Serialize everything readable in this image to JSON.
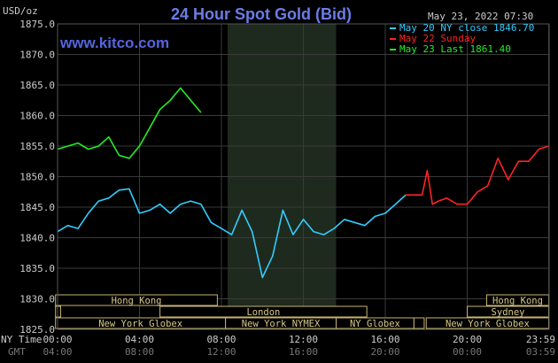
{
  "chart_data": {
    "type": "line",
    "title": "24 Hour Spot Gold (Bid)",
    "watermark": "www.kitco.com",
    "unit_label": "USD/oz",
    "timestamp": "May 23, 2022 07:30",
    "ylim": [
      1825,
      1875
    ],
    "y_ticks": [
      "1875.0",
      "1870.0",
      "1865.0",
      "1860.0",
      "1855.0",
      "1850.0",
      "1845.0",
      "1840.0",
      "1835.0",
      "1830.0",
      "1825.0"
    ],
    "x_tick_hours": [
      0,
      4,
      8,
      12,
      16,
      20,
      23.98
    ],
    "x_labels_ny": [
      "00:00",
      "04:00",
      "08:00",
      "12:00",
      "16:00",
      "20:00",
      "23:59"
    ],
    "x_labels_gmt": [
      "04:00",
      "08:00",
      "12:00",
      "16:00",
      "20:00",
      "00:00",
      "03:59"
    ],
    "row_label_ny": "NY Time",
    "row_label_gmt": "GMT",
    "shaded_hours": [
      8.3,
      13.6
    ],
    "legend": [
      {
        "text": "May 20 NY close 1846.70",
        "color": "#33ccff"
      },
      {
        "text": "May 22 Sunday",
        "color": "#ff2222"
      },
      {
        "text": "May 23 Last 1861.40",
        "color": "#22ee22"
      }
    ],
    "series": [
      {
        "color": "#33ccff",
        "x": [
          0,
          0.5,
          1,
          1.5,
          2,
          2.5,
          3,
          3.5,
          4,
          4.5,
          5,
          5.5,
          6,
          6.5,
          7,
          7.5,
          8,
          8.5,
          9,
          9.5,
          10,
          10.5,
          11,
          11.5,
          12,
          12.5,
          13,
          13.5,
          14,
          14.5,
          15,
          15.5,
          16,
          16.5,
          17
        ],
        "y": [
          1841.0,
          1842.0,
          1841.5,
          1844.0,
          1846.0,
          1846.5,
          1847.8,
          1848.0,
          1844.0,
          1844.5,
          1845.5,
          1844.0,
          1845.5,
          1846.0,
          1845.5,
          1842.5,
          1841.5,
          1840.5,
          1844.5,
          1841.0,
          1833.5,
          1837.0,
          1844.5,
          1840.5,
          1843.0,
          1841.0,
          1840.5,
          1841.5,
          1843.0,
          1842.5,
          1842.0,
          1843.5,
          1844.0,
          1845.5,
          1847.0
        ]
      },
      {
        "color": "#ff2222",
        "x": [
          17,
          17.8,
          18.05,
          18.3,
          18.6,
          19,
          19.5,
          20,
          20.5,
          21,
          21.5,
          22,
          22.5,
          23,
          23.5,
          23.98
        ],
        "y": [
          1847.0,
          1847.0,
          1851.0,
          1845.5,
          1846.0,
          1846.5,
          1845.5,
          1845.5,
          1847.5,
          1848.5,
          1853.0,
          1849.5,
          1852.5,
          1852.5,
          1854.5,
          1855.0
        ]
      },
      {
        "color": "#22ee22",
        "x": [
          0,
          0.5,
          1,
          1.5,
          2,
          2.5,
          3,
          3.5,
          4,
          4.5,
          5,
          5.5,
          6,
          6.5,
          7
        ],
        "y": [
          1854.5,
          1855.0,
          1855.5,
          1854.5,
          1855.0,
          1856.5,
          1853.5,
          1853.0,
          1855.0,
          1858.0,
          1861.0,
          1862.5,
          1864.5,
          1862.5,
          1860.5
        ]
      }
    ],
    "session_bars": [
      {
        "label": "Hong Kong",
        "row": 0,
        "start": -0.1,
        "end": 7.8
      },
      {
        "label": "Hong Kong",
        "row": 0,
        "start": 20.95,
        "end": 23.98
      },
      {
        "label": "",
        "row": 1,
        "start": -0.1,
        "end": 0.15
      },
      {
        "label": "London",
        "row": 1,
        "start": 5.0,
        "end": 15.1
      },
      {
        "label": "Sydney",
        "row": 1,
        "start": 20.0,
        "end": 23.98
      },
      {
        "label": "New York Globex",
        "row": 2,
        "start": -0.1,
        "end": 8.2
      },
      {
        "label": "New York NYMEX",
        "row": 2,
        "start": 8.2,
        "end": 13.6
      },
      {
        "label": "NY Globex",
        "row": 2,
        "start": 13.6,
        "end": 17.4
      },
      {
        "label": "",
        "row": 2,
        "start": 17.4,
        "end": 17.9
      },
      {
        "label": "New York Globex",
        "row": 2,
        "start": 18.0,
        "end": 23.98
      }
    ]
  }
}
